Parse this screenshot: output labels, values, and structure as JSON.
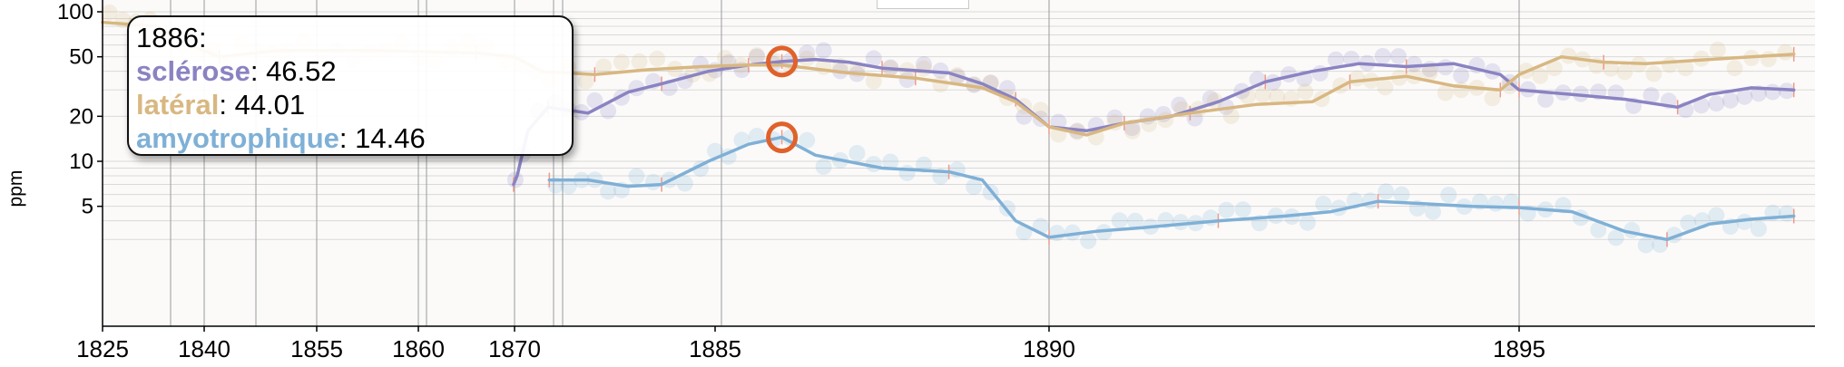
{
  "chart_data": {
    "type": "line",
    "title": "",
    "xlabel": "",
    "ylabel": "ppm",
    "yscale": "log",
    "ylim": [
      3,
      100
    ],
    "y_ticks": [
      5,
      10,
      20,
      50,
      100
    ],
    "x_tick_labels": [
      "1825",
      "1840",
      "1855",
      "1860",
      "1870",
      "1885",
      "1890",
      "1895"
    ],
    "grid": true,
    "legend": "none",
    "series": [
      {
        "name": "sclérose",
        "color": "#8a83c2",
        "values": [
          [
            "1869.9",
            7
          ],
          [
            "1870.2",
            8
          ],
          [
            "1871.0",
            16
          ],
          [
            "1872.5",
            23
          ],
          [
            "1875.5",
            21
          ],
          [
            "1878.5",
            29
          ],
          [
            "1881.0",
            33
          ],
          [
            "1884.5",
            40
          ],
          [
            "1885.5",
            44
          ],
          [
            "1886.0",
            46.5
          ],
          [
            "1886.5",
            48
          ],
          [
            "1887.0",
            46
          ],
          [
            "1887.5",
            42
          ],
          [
            "1888.5",
            39
          ],
          [
            "1889.0",
            33
          ],
          [
            "1889.5",
            26
          ],
          [
            "1890.0",
            17
          ],
          [
            "1890.4",
            16
          ],
          [
            "1890.8",
            18
          ],
          [
            "1891.3",
            20
          ],
          [
            "1891.8",
            25
          ],
          [
            "1892.3",
            34
          ],
          [
            "1892.8",
            40
          ],
          [
            "1893.3",
            45
          ],
          [
            "1893.8",
            43
          ],
          [
            "1894.3",
            45
          ],
          [
            "1894.8",
            38
          ],
          [
            "1895.0",
            30
          ],
          [
            "1895.5",
            28
          ],
          [
            "1896.0",
            26
          ],
          [
            "1896.5",
            23
          ],
          [
            "1896.8",
            28
          ],
          [
            "1897.2",
            31
          ],
          [
            "1897.6",
            30
          ]
        ]
      },
      {
        "name": "latéral",
        "color": "#d8b781",
        "values": [
          [
            "1825",
            85
          ],
          [
            "1833",
            80
          ],
          [
            "1838",
            60
          ],
          [
            "1842",
            50
          ],
          [
            "1850",
            55
          ],
          [
            "1858",
            55
          ],
          [
            "1866",
            53
          ],
          [
            "1870",
            50
          ],
          [
            "1872",
            40
          ],
          [
            "1876",
            38
          ],
          [
            "1880",
            41
          ],
          [
            "1884",
            43
          ],
          [
            "1885.5",
            44
          ],
          [
            "1886.0",
            44
          ],
          [
            "1887.0",
            39
          ],
          [
            "1888.0",
            36
          ],
          [
            "1889.0",
            31
          ],
          [
            "1889.5",
            25
          ],
          [
            "1890.0",
            17
          ],
          [
            "1890.4",
            15
          ],
          [
            "1890.8",
            18
          ],
          [
            "1891.5",
            21
          ],
          [
            "1892.2",
            24
          ],
          [
            "1892.8",
            25
          ],
          [
            "1893.2",
            34
          ],
          [
            "1893.8",
            37
          ],
          [
            "1894.3",
            32
          ],
          [
            "1894.8",
            30
          ],
          [
            "1895.0",
            38
          ],
          [
            "1895.4",
            50
          ],
          [
            "1895.8",
            46
          ],
          [
            "1896.2",
            45
          ],
          [
            "1896.8",
            48
          ],
          [
            "1897.6",
            52
          ]
        ]
      },
      {
        "name": "amyotrophique",
        "color": "#7fb0d6",
        "values": [
          [
            "1872.6",
            7.5
          ],
          [
            "1875.5",
            7.5
          ],
          [
            "1878.5",
            6.8
          ],
          [
            "1881.0",
            7.0
          ],
          [
            "1884.5",
            10
          ],
          [
            "1885.5",
            13
          ],
          [
            "1886.0",
            14.5
          ],
          [
            "1886.5",
            11
          ],
          [
            "1887.5",
            9
          ],
          [
            "1888.5",
            8.5
          ],
          [
            "1889.0",
            7.5
          ],
          [
            "1889.5",
            4
          ],
          [
            "1890.0",
            3.1
          ],
          [
            "1890.5",
            3.4
          ],
          [
            "1891.0",
            3.6
          ],
          [
            "1891.8",
            4.0
          ],
          [
            "1892.5",
            4.3
          ],
          [
            "1893.0",
            4.6
          ],
          [
            "1893.5",
            5.4
          ],
          [
            "1894.0",
            5.2
          ],
          [
            "1894.5",
            5.0
          ],
          [
            "1895.0",
            4.9
          ],
          [
            "1895.5",
            4.6
          ],
          [
            "1896.0",
            3.4
          ],
          [
            "1896.4",
            3.0
          ],
          [
            "1896.8",
            3.8
          ],
          [
            "1897.2",
            4.1
          ],
          [
            "1897.6",
            4.3
          ]
        ]
      }
    ],
    "highlight": {
      "x": "1886",
      "label": "1886:",
      "points": [
        {
          "name": "sclérose",
          "value": "46.52",
          "y": 46.52
        },
        {
          "name": "latéral",
          "value": "44.01",
          "y": 44.01
        },
        {
          "name": "amyotrophique",
          "value": "14.46",
          "y": 14.46
        }
      ],
      "marker_color": "#e0622a"
    }
  }
}
